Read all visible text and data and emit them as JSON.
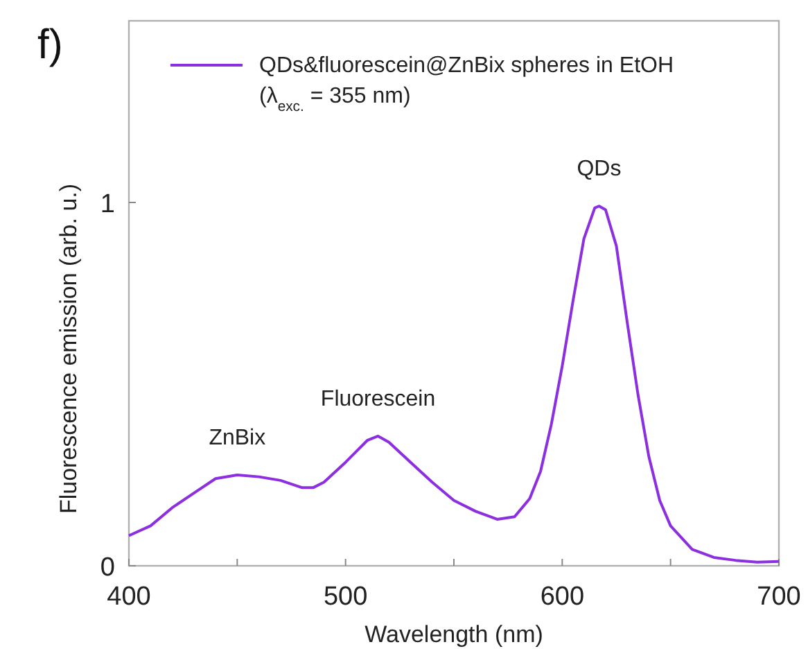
{
  "chart_data": {
    "type": "line",
    "xlabel": "Wavelength (nm)",
    "ylabel": "Fluorescence emission (arb. u.)",
    "annotations": [
      "f)",
      {
        "text": "ZnBix",
        "x": 450,
        "y": 0.25
      },
      {
        "text": "Fluorescein",
        "x": 515,
        "y": 0.357
      },
      {
        "text": "QDs",
        "x": 617,
        "y": 0.99
      }
    ],
    "xlim": [
      400,
      700
    ],
    "xticks": [
      400,
      {
        "value": 450,
        "label": null
      },
      500,
      {
        "value": 550,
        "label": null
      },
      600,
      {
        "value": 650,
        "label": null
      },
      700
    ],
    "ylim": [
      0,
      1.5
    ],
    "yticks": [
      0,
      1
    ],
    "grid": false,
    "legend": "top",
    "marker": "none",
    "line_style": "solid",
    "series": [
      {
        "name": "QDs&fluorescein@ZnBix spheres in EtOH (λ$_{exc.}$ = 355 nm)",
        "color": "#8b2fe0",
        "x": [
          400,
          410,
          420,
          430,
          440,
          450,
          460,
          470,
          480,
          485,
          490,
          500,
          510,
          515,
          520,
          530,
          540,
          550,
          560,
          570,
          578,
          585,
          590,
          595,
          600,
          605,
          610,
          615,
          617,
          620,
          625,
          630,
          635,
          640,
          645,
          650,
          660,
          670,
          680,
          690,
          700
        ],
        "values": [
          0.083,
          0.11,
          0.16,
          0.2,
          0.24,
          0.25,
          0.245,
          0.235,
          0.215,
          0.215,
          0.23,
          0.285,
          0.345,
          0.357,
          0.34,
          0.285,
          0.23,
          0.18,
          0.15,
          0.128,
          0.135,
          0.185,
          0.26,
          0.39,
          0.55,
          0.73,
          0.9,
          0.985,
          0.99,
          0.98,
          0.88,
          0.67,
          0.47,
          0.3,
          0.18,
          0.11,
          0.045,
          0.023,
          0.015,
          0.01,
          0.012
        ]
      }
    ]
  }
}
